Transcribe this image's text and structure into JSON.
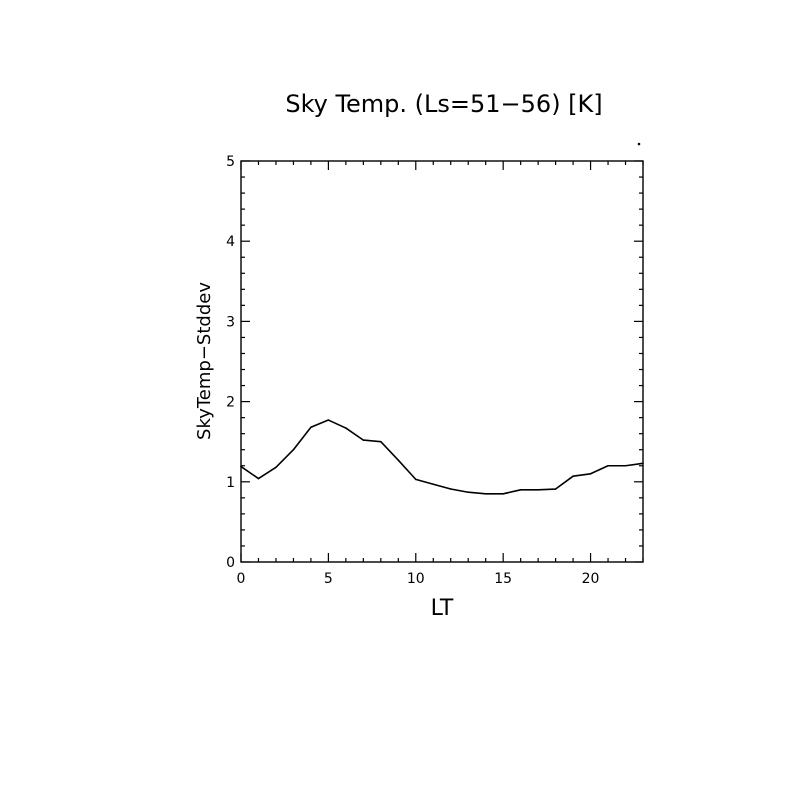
{
  "chart_data": {
    "type": "line",
    "title": "Sky Temp. (Ls=51−56) [K]",
    "xlabel": "LT",
    "ylabel": "SkyTemp−Stddev",
    "xlim": [
      0,
      23
    ],
    "ylim": [
      0,
      5
    ],
    "xticks": [
      0,
      5,
      10,
      15,
      20
    ],
    "yticks": [
      0,
      1,
      2,
      3,
      4,
      5
    ],
    "grid": false,
    "series": [
      {
        "x": [
          0,
          1,
          2,
          3,
          4,
          5,
          6,
          7,
          8,
          9,
          10,
          11,
          12,
          13,
          14,
          15,
          16,
          17,
          18,
          19,
          20,
          21,
          22,
          23
        ],
        "values": [
          1.19,
          1.04,
          1.18,
          1.4,
          1.68,
          1.77,
          1.67,
          1.52,
          1.5,
          1.27,
          1.03,
          0.97,
          0.91,
          0.87,
          0.85,
          0.85,
          0.9,
          0.9,
          0.91,
          1.07,
          1.1,
          1.2,
          1.2,
          1.23
        ]
      }
    ]
  }
}
